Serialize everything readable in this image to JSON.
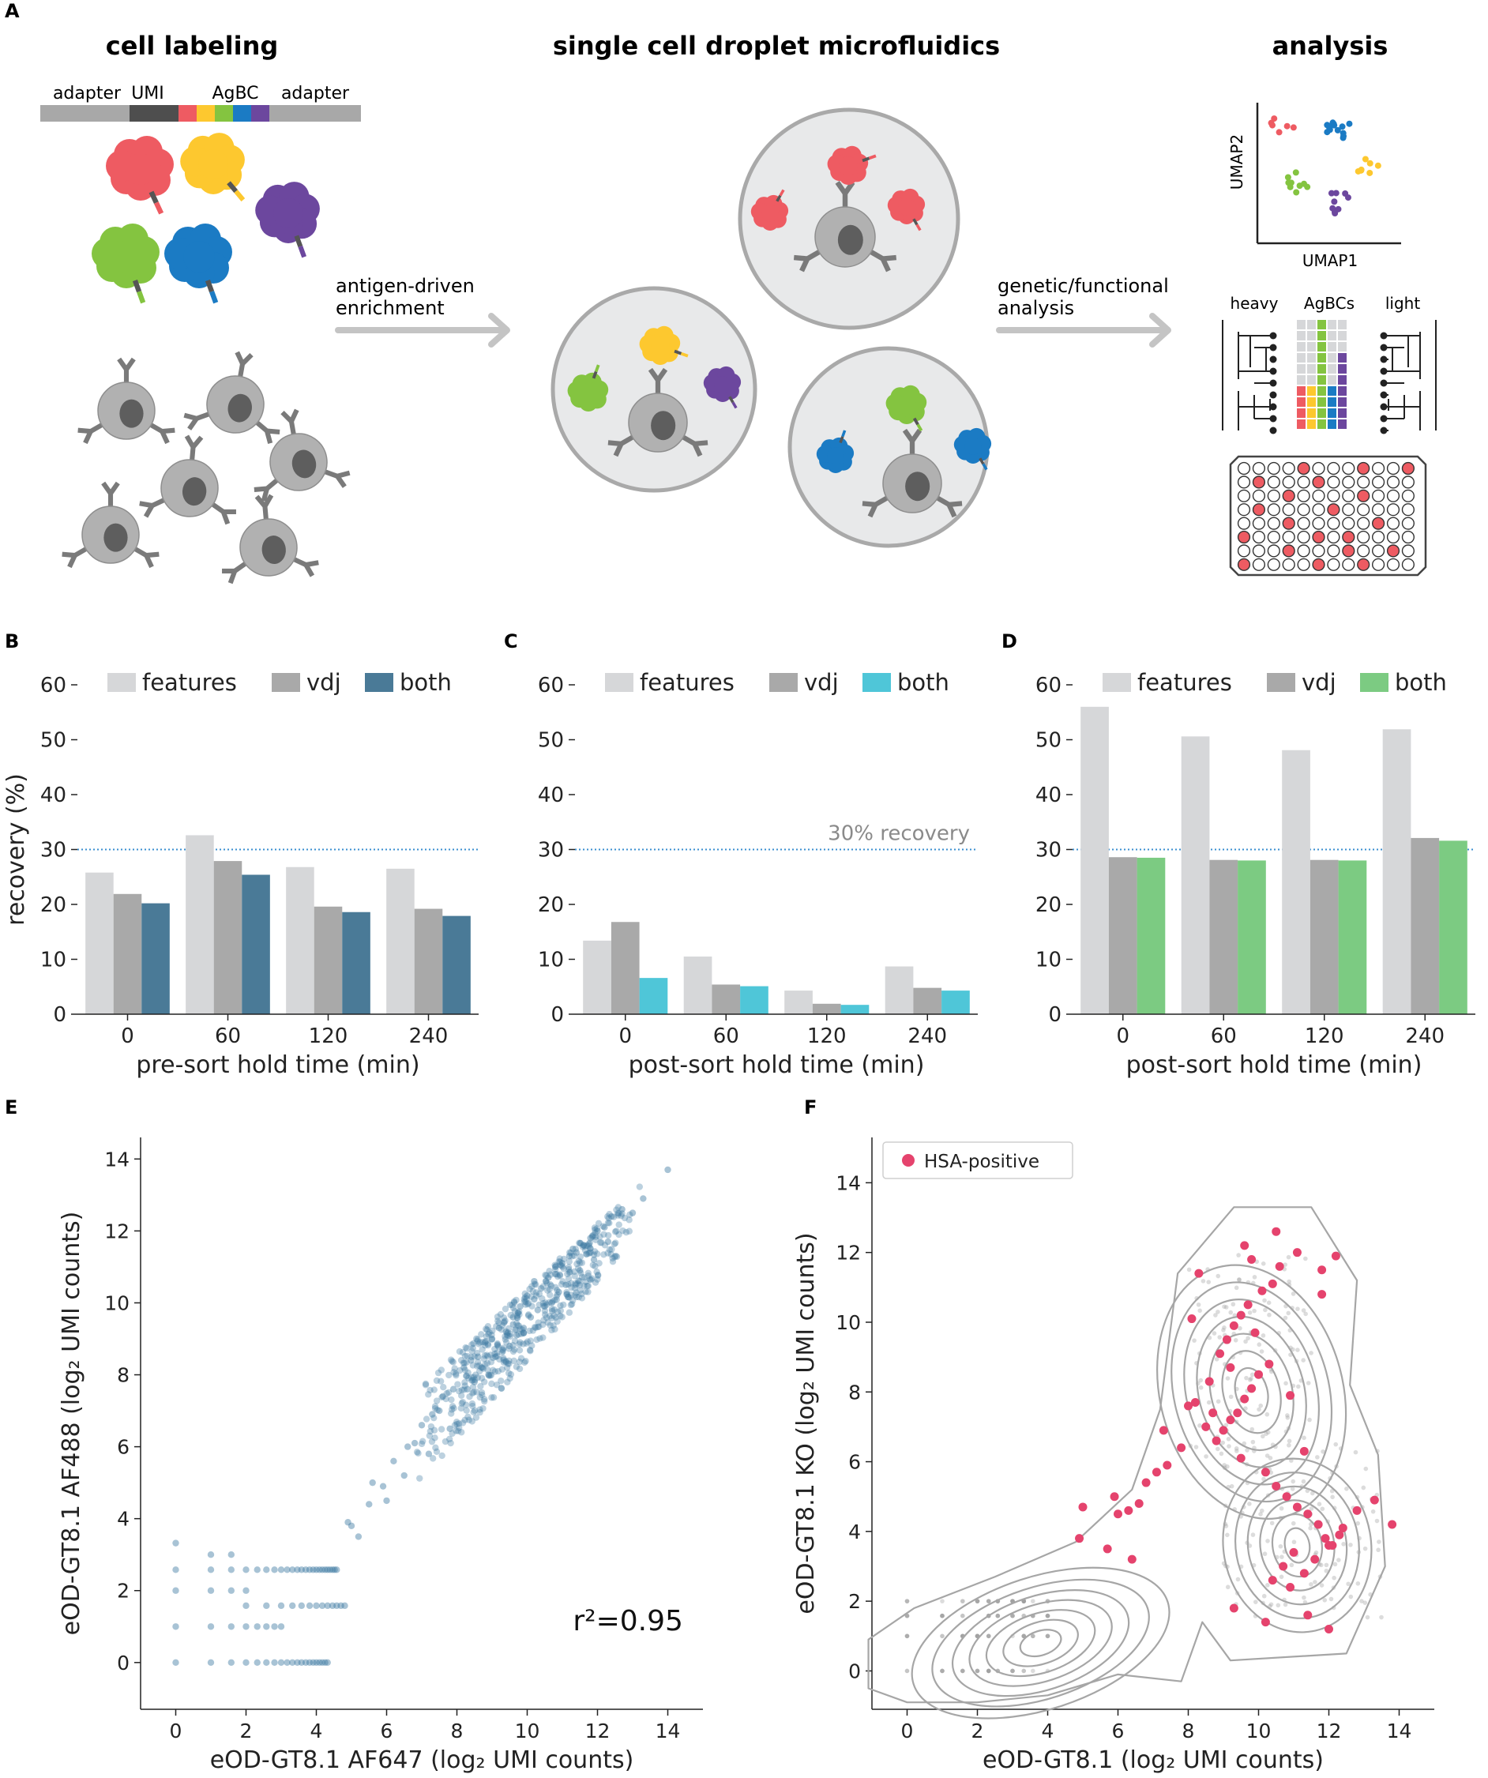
{
  "figure": {
    "panel_letters": [
      "A",
      "B",
      "C",
      "D",
      "E",
      "F"
    ]
  },
  "workflow": {
    "titles": {
      "left": "cell labeling",
      "middle": "single cell droplet microfluidics",
      "right": "analysis"
    },
    "barcode_labels": [
      "adapter",
      "UMI",
      "AgBC",
      "adapter"
    ],
    "arrow1_label": [
      "antigen-driven",
      "enrichment"
    ],
    "arrow2_label": [
      "genetic/functional",
      "analysis"
    ],
    "umap": {
      "xlabel": "UMAP1",
      "ylabel": "UMAP2"
    },
    "tree_labels": {
      "heavy": "heavy",
      "agbcs": "AgBCs",
      "light": "light"
    },
    "antigen_colors": {
      "red": "#ee5b62",
      "yellow": "#fdc82f",
      "green": "#84c440",
      "blue": "#1b7bc4",
      "purple": "#6c479e"
    },
    "barcode_colors": {
      "adapter": "#a8a8a8",
      "umi": "#4e4e4e"
    }
  },
  "chart_data": [
    {
      "panel": "B",
      "type": "bar",
      "categories": [
        "0",
        "60",
        "120",
        "240"
      ],
      "series": [
        {
          "name": "features",
          "color": "#d6d7d9",
          "values": [
            25.8,
            32.6,
            26.8,
            26.5
          ]
        },
        {
          "name": "vdj",
          "color": "#a9a9a9",
          "values": [
            21.9,
            27.9,
            19.6,
            19.2
          ]
        },
        {
          "name": "both",
          "color": "#4a7a97",
          "values": [
            20.2,
            25.4,
            18.6,
            17.9
          ]
        }
      ],
      "xlabel": "pre-sort hold time (min)",
      "ylabel": "recovery (%)",
      "ylim": [
        0,
        60
      ],
      "yticks": [
        0,
        10,
        20,
        30,
        40,
        50,
        60
      ],
      "reference_line": {
        "y": 30,
        "label": ""
      }
    },
    {
      "panel": "C",
      "type": "bar",
      "categories": [
        "0",
        "60",
        "120",
        "240"
      ],
      "series": [
        {
          "name": "features",
          "color": "#d6d7d9",
          "values": [
            13.4,
            10.5,
            4.3,
            8.7
          ]
        },
        {
          "name": "vdj",
          "color": "#a9a9a9",
          "values": [
            16.8,
            5.4,
            1.9,
            4.8
          ]
        },
        {
          "name": "both",
          "color": "#4fc6d8",
          "values": [
            6.6,
            5.1,
            1.7,
            4.3
          ]
        }
      ],
      "xlabel": "post-sort hold time (min)",
      "ylabel": "",
      "ylim": [
        0,
        60
      ],
      "yticks": [
        0,
        10,
        20,
        30,
        40,
        50,
        60
      ],
      "reference_line": {
        "y": 30,
        "label": "30% recovery"
      }
    },
    {
      "panel": "D",
      "type": "bar",
      "categories": [
        "0",
        "60",
        "120",
        "240"
      ],
      "series": [
        {
          "name": "features",
          "color": "#d6d7d9",
          "values": [
            56.0,
            50.6,
            48.1,
            51.9
          ]
        },
        {
          "name": "vdj",
          "color": "#a9a9a9",
          "values": [
            28.6,
            28.1,
            28.1,
            32.1
          ]
        },
        {
          "name": "both",
          "color": "#7ccb82",
          "values": [
            28.5,
            28.0,
            28.0,
            31.6
          ]
        }
      ],
      "xlabel": "post-sort hold time (min)",
      "ylabel": "",
      "ylim": [
        0,
        60
      ],
      "yticks": [
        0,
        10,
        20,
        30,
        40,
        50,
        60
      ],
      "reference_line": {
        "y": 30,
        "label": ""
      }
    },
    {
      "panel": "E",
      "type": "scatter",
      "xlabel": "eOD-GT8.1 AF647 (log₂ UMI counts)",
      "ylabel": "eOD-GT8.1 AF488 (log₂ UMI counts)",
      "xlim": [
        -1,
        15
      ],
      "ylim": [
        -1.3,
        14.6
      ],
      "xticks": [
        0,
        2,
        4,
        6,
        8,
        10,
        12,
        14
      ],
      "yticks": [
        0,
        2,
        4,
        6,
        8,
        10,
        12,
        14
      ],
      "annotation": "r²=0.95",
      "point_color": "#3e7aa2",
      "x": [
        0,
        0,
        0,
        0,
        0,
        1,
        1,
        1,
        1,
        1.58,
        1.58,
        1.58,
        1.58,
        2,
        2,
        2,
        2.32,
        2.32,
        2.58,
        2.58,
        2.81,
        2.81,
        3,
        3,
        3.17,
        3.32,
        3.46,
        3.58,
        3.7,
        3.81,
        3.91,
        4,
        4.09,
        4.17,
        4.25,
        4.32,
        1,
        1.58,
        2,
        2.32,
        2.58,
        2.81,
        3,
        3.17,
        3.32,
        3.46,
        3.58,
        3.7,
        3.81,
        3.91,
        4,
        4.09,
        4.17,
        4.25,
        4.32,
        4.39,
        4.46,
        4.52,
        4.58,
        2,
        2.58,
        3,
        3.32,
        3.58,
        3.81,
        4,
        4.17,
        4.32,
        4.46,
        4.58,
        4.7,
        4.81,
        5.0,
        5.2,
        5.5,
        5.9,
        6.2,
        6.6,
        7.0,
        7.3,
        7.6,
        7.9,
        8.2,
        8.4,
        8.6,
        8.8,
        9.0,
        9.2,
        9.4,
        9.6,
        9.8,
        10.0,
        10.2,
        10.4,
        10.6,
        10.8,
        11.0,
        11.2,
        11.4,
        11.6,
        11.8,
        12.0,
        12.2,
        12.4,
        12.7,
        13.0,
        13.3,
        14.0,
        6.0,
        6.5,
        7.2,
        7.8,
        8.3,
        8.7,
        9.1,
        9.5,
        9.9,
        10.3,
        10.7,
        11.1,
        11.5,
        11.9,
        12.3,
        9.3,
        9.7,
        10.1,
        10.5,
        10.9,
        8.9,
        8.5,
        9.6,
        10.2,
        10.8,
        11.3,
        7.5,
        6.8,
        5.6,
        4.9
      ],
      "y": [
        0,
        1,
        2,
        2.58,
        3.32,
        0,
        1,
        2,
        3,
        0,
        1,
        2,
        3,
        0,
        1,
        2,
        0,
        1,
        0,
        1,
        0,
        1,
        0,
        1,
        0,
        0,
        0,
        0,
        0,
        0,
        0,
        0,
        0,
        0,
        0,
        0,
        2.58,
        2.58,
        2.58,
        2.58,
        2.58,
        2.58,
        2.58,
        2.58,
        2.58,
        2.58,
        2.58,
        2.58,
        2.58,
        2.58,
        2.58,
        2.58,
        2.58,
        2.58,
        2.58,
        2.58,
        2.58,
        2.58,
        2.58,
        1.58,
        1.58,
        1.58,
        1.58,
        1.58,
        1.58,
        1.58,
        1.58,
        1.58,
        1.58,
        1.58,
        1.58,
        1.58,
        3.8,
        3.5,
        4.4,
        4.9,
        5.6,
        6.0,
        6.6,
        6.9,
        7.4,
        7.6,
        8.2,
        8.4,
        8.5,
        8.9,
        9.0,
        9.3,
        9.2,
        9.6,
        9.9,
        10.2,
        10.1,
        10.4,
        10.7,
        10.8,
        11.1,
        11.3,
        11.4,
        11.6,
        11.8,
        12.0,
        12.1,
        12.4,
        12.6,
        12.5,
        12.9,
        13.7,
        4.5,
        5.2,
        5.8,
        6.5,
        7.6,
        8.2,
        8.5,
        8.8,
        9.3,
        9.8,
        10.0,
        10.5,
        10.9,
        11.2,
        11.7,
        8.7,
        9.1,
        9.6,
        9.9,
        10.3,
        8.0,
        7.8,
        9.4,
        10.6,
        11.0,
        11.5,
        7.0,
        6.1,
        5.0,
        3.9
      ]
    },
    {
      "panel": "F",
      "type": "scatter",
      "xlabel": "eOD-GT8.1 (log₂ UMI counts)",
      "ylabel": "eOD-GT8.1 KO (log₂ UMI counts)",
      "xlim": [
        -1,
        15
      ],
      "ylim": [
        -1.1,
        15.3
      ],
      "xticks": [
        0,
        2,
        4,
        6,
        8,
        10,
        12,
        14
      ],
      "yticks": [
        0,
        2,
        4,
        6,
        8,
        10,
        12,
        14
      ],
      "legend": "HSA-positive",
      "highlight_color": "#e5436d",
      "background_color": "#9c9c9c",
      "x": [
        8.2,
        8.5,
        8.8,
        9.0,
        9.2,
        9.4,
        9.6,
        9.8,
        10.0,
        10.3,
        8.6,
        8.9,
        9.1,
        9.3,
        9.5,
        9.7,
        10.1,
        10.4,
        10.6,
        9.9,
        9.2,
        8.7,
        9.5,
        10.2,
        10.5,
        10.8,
        11.1,
        11.4,
        11.7,
        11.9,
        12.1,
        12.3,
        11.0,
        10.7,
        10.4,
        10.9,
        11.3,
        11.6,
        12.0,
        12.4,
        12.8,
        13.3,
        13.8,
        5.9,
        6.6,
        6.8,
        7.1,
        7.4,
        7.8,
        7.3,
        8.0,
        6.3,
        6.0,
        5.0,
        4.9,
        5.7,
        6.4,
        9.3,
        10.2,
        11.4,
        12.0,
        11.8,
        9.8,
        9.6,
        10.5,
        11.1,
        8.3,
        8.1,
        11.8,
        12.2,
        10.9,
        11.3
      ],
      "y": [
        7.7,
        7.0,
        6.6,
        6.9,
        7.2,
        7.4,
        7.8,
        8.1,
        8.5,
        8.8,
        8.3,
        9.1,
        9.5,
        9.9,
        10.2,
        10.5,
        10.9,
        11.1,
        11.6,
        9.7,
        8.7,
        7.4,
        6.1,
        5.7,
        5.3,
        5.0,
        4.7,
        4.5,
        4.2,
        3.8,
        3.6,
        3.9,
        3.4,
        3.0,
        2.6,
        2.4,
        2.8,
        3.2,
        3.6,
        4.1,
        4.6,
        4.9,
        4.2,
        5.0,
        4.8,
        5.4,
        5.7,
        5.9,
        6.4,
        6.9,
        7.6,
        4.6,
        4.5,
        4.7,
        3.8,
        3.5,
        3.2,
        1.8,
        1.4,
        1.6,
        1.2,
        10.8,
        11.8,
        12.2,
        12.6,
        12.0,
        11.4,
        10.1,
        11.5,
        11.9,
        7.9,
        6.3
      ],
      "contour_note": "density contours of all cells"
    }
  ]
}
